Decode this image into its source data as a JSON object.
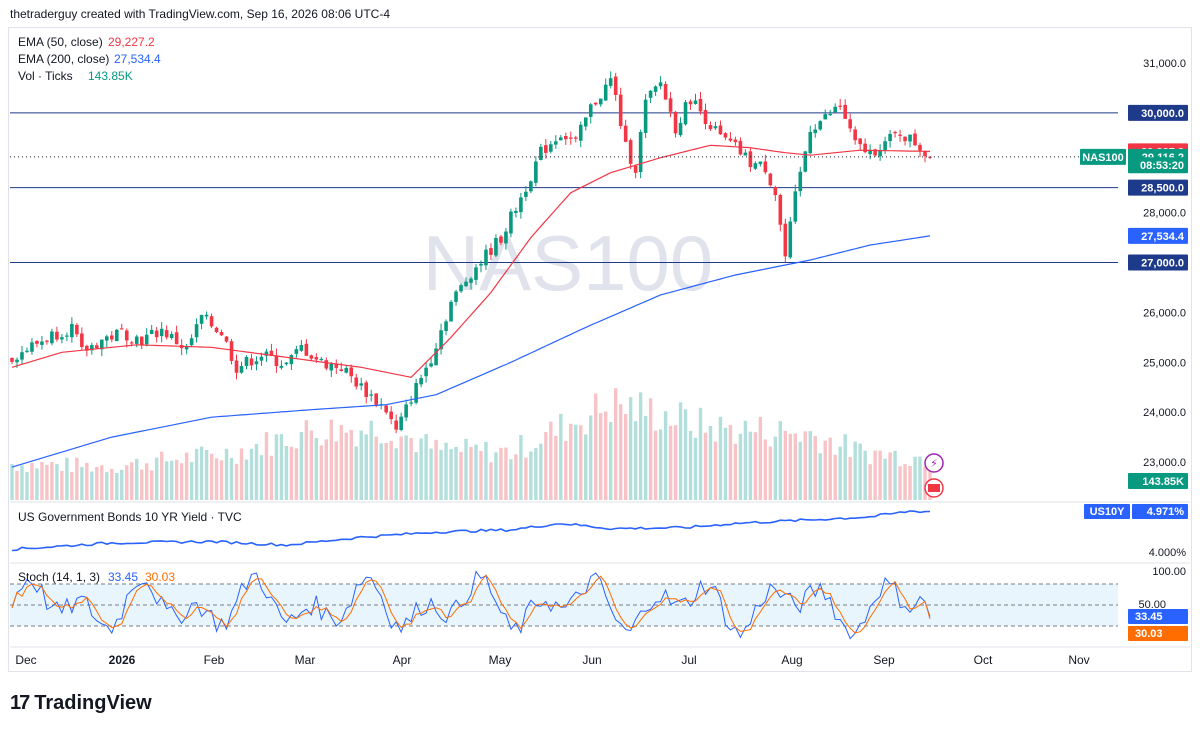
{
  "header": {
    "attribution": "thetraderguy created with TradingView.com, Sep 16, 2026 08:06 UTC-4"
  },
  "brand": {
    "name": "TradingView",
    "mark": "17"
  },
  "watermark": "NAS100",
  "colors": {
    "up": "#089981",
    "down": "#f23645",
    "ema50": "#f23645",
    "ema200": "#2962ff",
    "hline": "#1e3a8a",
    "bond": "#2962ff",
    "stochK": "#2962ff",
    "stochD": "#ff6d00",
    "volUp": "#b2dfdb",
    "volDown": "#f7c3c6"
  },
  "legend": {
    "ema50_label": "EMA (50, close)",
    "ema50_value": "29,227.2",
    "ema200_label": "EMA (200, close)",
    "ema200_value": "27,534.4",
    "vol_label": "Vol · Ticks",
    "vol_value": "143.85K"
  },
  "price_axis": {
    "ticks": [
      "31,000.0",
      "28,000.0",
      "26,000.0",
      "25,000.0",
      "24,000.0",
      "23,000.0"
    ],
    "tick_values": [
      31000,
      28000,
      26000,
      25000,
      24000,
      23000
    ],
    "tags": [
      {
        "label": "30,000.0",
        "value": 30000,
        "kind": "line"
      },
      {
        "label": "29,227.2",
        "value": 29227.2,
        "kind": "ema50"
      },
      {
        "label": "29,116.2",
        "value": 29116.2,
        "kind": "last"
      },
      {
        "label": "08:53:20",
        "value": 28950,
        "kind": "countdown"
      },
      {
        "label": "28,500.0",
        "value": 28500,
        "kind": "line"
      },
      {
        "label": "27,534.4",
        "value": 27534.4,
        "kind": "ema200"
      },
      {
        "label": "27,000.0",
        "value": 27000,
        "kind": "line"
      },
      {
        "label": "143.85K",
        "value": 22620,
        "kind": "vol"
      }
    ],
    "symbol_tag": "NAS100"
  },
  "horizontal_lines": [
    30000,
    28500,
    27000
  ],
  "bond_pane": {
    "title": "US Government Bonds 10 YR Yield · TVC",
    "symbol": "US10Y",
    "value": "4.971%",
    "axis_tick": "4.000%"
  },
  "stoch_pane": {
    "title": "Stoch (14, 1, 3)",
    "k_value": "33.45",
    "d_value": "30.03",
    "ticks": [
      "100.00",
      "50.00"
    ],
    "upper": 80,
    "lower": 20
  },
  "time_axis": [
    {
      "label": "Dec",
      "bold": false
    },
    {
      "label": "2026",
      "bold": true
    },
    {
      "label": "Feb",
      "bold": false
    },
    {
      "label": "Mar",
      "bold": false
    },
    {
      "label": "Apr",
      "bold": false
    },
    {
      "label": "May",
      "bold": false
    },
    {
      "label": "Jun",
      "bold": false
    },
    {
      "label": "Jul",
      "bold": false
    },
    {
      "label": "Aug",
      "bold": false
    },
    {
      "label": "Sep",
      "bold": false
    },
    {
      "label": "Oct",
      "bold": false
    },
    {
      "label": "Nov",
      "bold": false
    }
  ],
  "chart_data": {
    "type": "candlestick",
    "symbol": "NAS100",
    "ylim": [
      22200,
      31700
    ],
    "price_keypoints": [
      [
        0,
        25100
      ],
      [
        8,
        25550
      ],
      [
        12,
        25700
      ],
      [
        14,
        25200
      ],
      [
        18,
        25450
      ],
      [
        22,
        25600
      ],
      [
        26,
        25450
      ],
      [
        30,
        25650
      ],
      [
        35,
        25250
      ],
      [
        38,
        25900
      ],
      [
        42,
        25600
      ],
      [
        45,
        24900
      ],
      [
        50,
        25150
      ],
      [
        55,
        24950
      ],
      [
        58,
        25300
      ],
      [
        62,
        25000
      ],
      [
        66,
        24900
      ],
      [
        70,
        24500
      ],
      [
        75,
        24050
      ],
      [
        77,
        23600
      ],
      [
        80,
        24300
      ],
      [
        84,
        25100
      ],
      [
        88,
        26200
      ],
      [
        92,
        26800
      ],
      [
        98,
        27500
      ],
      [
        102,
        28300
      ],
      [
        106,
        29200
      ],
      [
        110,
        29600
      ],
      [
        113,
        29400
      ],
      [
        116,
        30100
      ],
      [
        120,
        30650
      ],
      [
        121,
        30300
      ],
      [
        123,
        29300
      ],
      [
        125,
        28900
      ],
      [
        127,
        30200
      ],
      [
        130,
        30600
      ],
      [
        133,
        29700
      ],
      [
        136,
        30300
      ],
      [
        139,
        29900
      ],
      [
        142,
        29500
      ],
      [
        145,
        29300
      ],
      [
        148,
        29000
      ],
      [
        151,
        28900
      ],
      [
        153,
        28400
      ],
      [
        155,
        27100
      ],
      [
        157,
        28300
      ],
      [
        160,
        29700
      ],
      [
        163,
        29900
      ],
      [
        166,
        30150
      ],
      [
        169,
        29350
      ],
      [
        172,
        29200
      ],
      [
        175,
        29400
      ],
      [
        178,
        29600
      ],
      [
        181,
        29400
      ],
      [
        184,
        29116
      ]
    ],
    "ema50_keypoints": [
      [
        0,
        24900
      ],
      [
        10,
        25200
      ],
      [
        25,
        25350
      ],
      [
        40,
        25300
      ],
      [
        55,
        25100
      ],
      [
        70,
        24900
      ],
      [
        80,
        24700
      ],
      [
        88,
        25500
      ],
      [
        96,
        26400
      ],
      [
        104,
        27500
      ],
      [
        112,
        28400
      ],
      [
        120,
        28800
      ],
      [
        130,
        29100
      ],
      [
        140,
        29350
      ],
      [
        148,
        29300
      ],
      [
        155,
        29200
      ],
      [
        160,
        29150
      ],
      [
        170,
        29250
      ],
      [
        184,
        29227
      ]
    ],
    "ema200_keypoints": [
      [
        0,
        22900
      ],
      [
        20,
        23500
      ],
      [
        40,
        23900
      ],
      [
        60,
        24050
      ],
      [
        75,
        24150
      ],
      [
        85,
        24350
      ],
      [
        100,
        25000
      ],
      [
        115,
        25700
      ],
      [
        130,
        26350
      ],
      [
        145,
        26750
      ],
      [
        160,
        27050
      ],
      [
        172,
        27350
      ],
      [
        184,
        27534
      ]
    ],
    "vol_keypoints": [
      [
        0,
        0.3
      ],
      [
        20,
        0.28
      ],
      [
        45,
        0.4
      ],
      [
        60,
        0.58
      ],
      [
        75,
        0.6
      ],
      [
        85,
        0.42
      ],
      [
        100,
        0.4
      ],
      [
        110,
        0.6
      ],
      [
        120,
        0.8
      ],
      [
        130,
        0.72
      ],
      [
        140,
        0.6
      ],
      [
        150,
        0.58
      ],
      [
        160,
        0.55
      ],
      [
        170,
        0.4
      ],
      [
        184,
        0.35
      ]
    ],
    "bond_keypoints": [
      [
        0,
        4.1
      ],
      [
        20,
        4.25
      ],
      [
        40,
        4.28
      ],
      [
        55,
        4.2
      ],
      [
        70,
        4.38
      ],
      [
        85,
        4.5
      ],
      [
        100,
        4.55
      ],
      [
        110,
        4.7
      ],
      [
        120,
        4.58
      ],
      [
        135,
        4.6
      ],
      [
        145,
        4.7
      ],
      [
        160,
        4.78
      ],
      [
        172,
        4.85
      ],
      [
        180,
        4.98
      ],
      [
        184,
        4.971
      ]
    ],
    "stoch_last": {
      "k": 33.45,
      "d": 30.03
    },
    "volume_last": "143.85K",
    "bond_last": 4.971
  }
}
